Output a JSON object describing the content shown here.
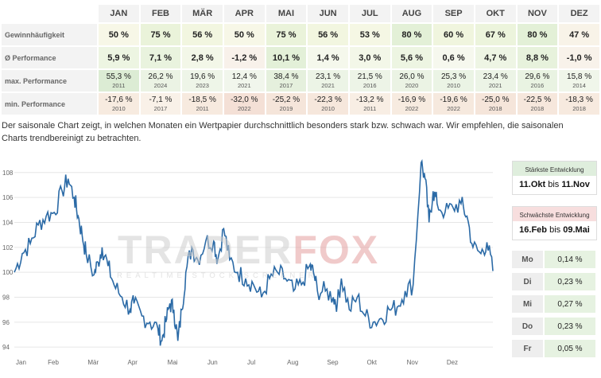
{
  "months": [
    "JAN",
    "FEB",
    "MÄR",
    "APR",
    "MAI",
    "JUN",
    "JUL",
    "AUG",
    "SEP",
    "OKT",
    "NOV",
    "DEZ"
  ],
  "rows": {
    "gewinn": {
      "label": "Gewinnhäufigkeit",
      "values": [
        "50 %",
        "75 %",
        "56 %",
        "50 %",
        "75 %",
        "56 %",
        "53 %",
        "80 %",
        "60 %",
        "67 %",
        "80 %",
        "47 %"
      ],
      "colors": [
        "#f7f7e7",
        "#eaf3da",
        "#f2f6e0",
        "#f7f7e7",
        "#eaf3da",
        "#f2f6e0",
        "#f5f7e4",
        "#e3f0d7",
        "#f0f5de",
        "#ecf4dc",
        "#e3f0d7",
        "#f8f3e8"
      ]
    },
    "perf": {
      "label": "Ø Performance",
      "values": [
        "5,9 %",
        "7,1 %",
        "2,8 %",
        "-1,2 %",
        "10,1 %",
        "1,4 %",
        "3,0 %",
        "5,6 %",
        "0,6 %",
        "4,7 %",
        "8,8 %",
        "-1,0 %"
      ],
      "colors": [
        "#edf5e2",
        "#e9f3de",
        "#f3f7e8",
        "#f8f1ea",
        "#e3f0d8",
        "#f5f8ec",
        "#f3f7e8",
        "#edf5e2",
        "#f6f8ee",
        "#eef5e4",
        "#e7f2dc",
        "#f8f2ea"
      ]
    },
    "max": {
      "label": "max. Performance",
      "values": [
        "55,3 %",
        "26,2 %",
        "19,6 %",
        "12,4 %",
        "38,4 %",
        "23,1 %",
        "21,5 %",
        "26,0 %",
        "25,3 %",
        "23,4 %",
        "29,6 %",
        "15,8 %"
      ],
      "years": [
        "2011",
        "2024",
        "2023",
        "2021",
        "2017",
        "2021",
        "2016",
        "2020",
        "2010",
        "2021",
        "2016",
        "2014"
      ],
      "colors": [
        "#dcecd4",
        "#ebf3e4",
        "#eef5e8",
        "#f1f6ec",
        "#e5f0dd",
        "#ecf4e6",
        "#edf4e7",
        "#ebf3e4",
        "#ebf4e5",
        "#ecf4e6",
        "#e9f3e2",
        "#f0f6ea"
      ]
    },
    "min": {
      "label": "min. Performance",
      "values": [
        "-17,6 %",
        "-7,1 %",
        "-18,5 %",
        "-32,0 %",
        "-25,2 %",
        "-22,3 %",
        "-13,2 %",
        "-16,9 %",
        "-19,6 %",
        "-25,0 %",
        "-22,5 %",
        "-18,3 %"
      ],
      "years": [
        "2010",
        "2017",
        "2011",
        "2022",
        "2019",
        "2010",
        "2011",
        "2022",
        "2022",
        "2018",
        "2018",
        "2018"
      ],
      "colors": [
        "#f7ebe0",
        "#f9f1e8",
        "#f7eadf",
        "#f4e0d6",
        "#f5e5da",
        "#f6e7dc",
        "#f8eee4",
        "#f7ebe0",
        "#f6e9de",
        "#f5e5da",
        "#f6e7dc",
        "#f7eadf"
      ]
    }
  },
  "description": "Der saisonale Chart zeigt, in welchen Monaten ein Wertpapier durchschnittlich besonders stark bzw. schwach war. Wir empfehlen, die saisonalen Charts trendbereinigt zu betrachten.",
  "watermark": {
    "part1": "TRADER",
    "part2": "FOX",
    "tagline": "REALTIME STOCK SCREENER"
  },
  "best": {
    "title": "Stärkste Entwicklung",
    "from": "11.Okt",
    "sep": "bis",
    "to": "11.Nov"
  },
  "worst": {
    "title": "Schwächste Entwicklung",
    "from": "16.Feb",
    "sep": "bis",
    "to": "09.Mai"
  },
  "weekdays": [
    {
      "day": "Mo",
      "value": "0,14 %"
    },
    {
      "day": "Di",
      "value": "0,23 %"
    },
    {
      "day": "Mi",
      "value": "0,27 %"
    },
    {
      "day": "Do",
      "value": "0,23 %"
    },
    {
      "day": "Fr",
      "value": "0,05 %"
    }
  ],
  "colors": {
    "line": "#2b6aa6",
    "grid": "#e6e6e6"
  },
  "chart_data": {
    "type": "line",
    "xlabel": "",
    "ylabel": "",
    "xticks": [
      "Jan",
      "Feb",
      "Mär",
      "Apr",
      "Mai",
      "Jun",
      "Jul",
      "Aug",
      "Sep",
      "Okt",
      "Nov",
      "Dez"
    ],
    "yticks": [
      94,
      96,
      98,
      100,
      102,
      104,
      106,
      108
    ],
    "xlim": [
      0,
      12
    ],
    "ylim": [
      93.5,
      109.2
    ],
    "grid": true,
    "x": [
      0,
      0.2,
      0.4,
      0.6,
      0.8,
      1.0,
      1.2,
      1.35,
      1.5,
      1.6,
      1.7,
      1.8,
      2.0,
      2.1,
      2.2,
      2.35,
      2.5,
      2.7,
      2.9,
      3.0,
      3.2,
      3.4,
      3.6,
      3.7,
      3.8,
      3.9,
      4.0,
      4.1,
      4.2,
      4.3,
      4.45,
      4.6,
      4.8,
      5.0,
      5.1,
      5.25,
      5.4,
      5.6,
      5.8,
      6.0,
      6.2,
      6.4,
      6.6,
      6.8,
      7.0,
      7.2,
      7.4,
      7.5,
      7.6,
      7.8,
      8.0,
      8.1,
      8.2,
      8.4,
      8.6,
      8.8,
      9.0,
      9.2,
      9.4,
      9.6,
      9.8,
      10.0,
      10.2,
      10.3,
      10.4,
      10.5,
      10.6,
      10.8,
      11.0,
      11.2,
      11.35,
      11.5,
      11.7,
      11.85,
      12.0
    ],
    "y": [
      100.0,
      101.5,
      102.3,
      103.8,
      104.5,
      104.8,
      106.5,
      107.5,
      106.0,
      104.5,
      103.0,
      101.5,
      99.8,
      100.8,
      102.0,
      100.5,
      99.0,
      98.0,
      97.0,
      97.5,
      96.5,
      96.0,
      95.5,
      94.5,
      96.0,
      97.5,
      97.0,
      94.5,
      97.0,
      100.0,
      102.0,
      101.0,
      102.5,
      102.5,
      101.0,
      103.5,
      101.0,
      100.0,
      99.5,
      99.0,
      98.0,
      99.5,
      100.0,
      99.5,
      98.5,
      99.0,
      100.5,
      100.0,
      98.5,
      98.5,
      98.0,
      97.5,
      99.5,
      97.0,
      98.0,
      96.5,
      96.0,
      96.3,
      97.0,
      97.2,
      98.5,
      99.0,
      108.8,
      107.5,
      104.0,
      106.5,
      105.5,
      104.8,
      105.2,
      105.5,
      104.5,
      102.0,
      101.5,
      102.4,
      100.1
    ]
  }
}
